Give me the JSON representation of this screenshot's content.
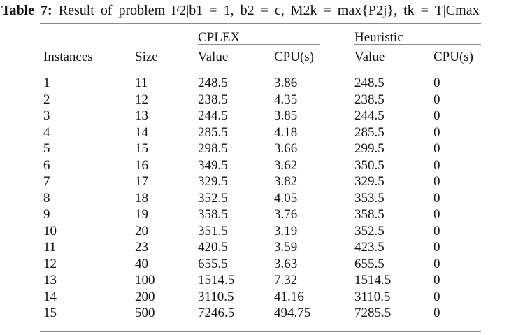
{
  "caption": {
    "label": "Table 7:",
    "text": "Result of problem F2|b1 = 1, b2 = c, M2k = max{P2j}, tk = T|Cmax"
  },
  "table": {
    "group_headers": [
      {
        "label": "CPLEX"
      },
      {
        "label": "Heuristic"
      }
    ],
    "column_headers": [
      "Instances",
      "Size",
      "Value",
      "CPU(s)",
      "Value",
      "CPU(s)"
    ],
    "column_keys": [
      "instances",
      "size",
      "cplex-value",
      "cplex-cpu",
      "heuristic-value",
      "heuristic-cpu"
    ],
    "rows": [
      [
        "1",
        "11",
        "248.5",
        "3.86",
        "248.5",
        "0"
      ],
      [
        "2",
        "12",
        "238.5",
        "4.35",
        "238.5",
        "0"
      ],
      [
        "3",
        "13",
        "244.5",
        "3.85",
        "244.5",
        "0"
      ],
      [
        "4",
        "14",
        "285.5",
        "4.18",
        "285.5",
        "0"
      ],
      [
        "5",
        "15",
        "298.5",
        "3.66",
        "299.5",
        "0"
      ],
      [
        "6",
        "16",
        "349.5",
        "3.62",
        "350.5",
        "0"
      ],
      [
        "7",
        "17",
        "329.5",
        "3.82",
        "329.5",
        "0"
      ],
      [
        "8",
        "18",
        "352.5",
        "4.05",
        "353.5",
        "0"
      ],
      [
        "9",
        "19",
        "358.5",
        "3.76",
        "358.5",
        "0"
      ],
      [
        "10",
        "20",
        "351.5",
        "3.19",
        "352.5",
        "0"
      ],
      [
        "11",
        "23",
        "420.5",
        "3.59",
        "423.5",
        "0"
      ],
      [
        "12",
        "40",
        "655.5",
        "3.63",
        "655.5",
        "0"
      ],
      [
        "13",
        "100",
        "1514.5",
        "7.32",
        "1514.5",
        "0"
      ],
      [
        "14",
        "200",
        "3110.5",
        "41.16",
        "3110.5",
        "0"
      ],
      [
        "15",
        "500",
        "7246.5",
        "494.75",
        "7285.5",
        "0"
      ]
    ]
  },
  "colors": {
    "background": "#ffffff",
    "text": "#121212",
    "rule": "#8c8c8c"
  }
}
